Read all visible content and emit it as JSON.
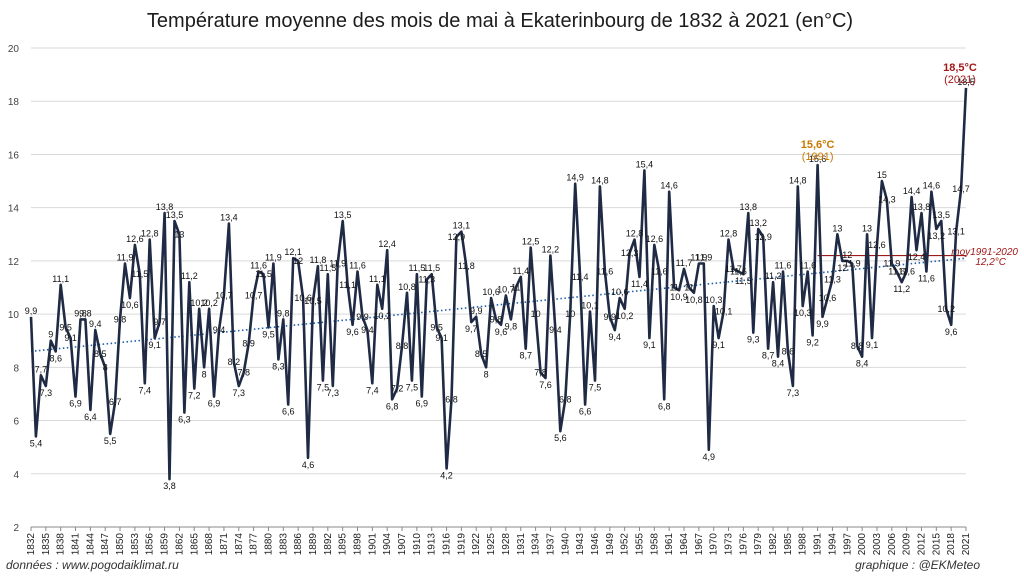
{
  "title": "Température moyenne des mois de mai à Ekaterinbourg de 1832 à 2021 (en°C)",
  "footer": {
    "source": "données : www.pogodaiklimat.ru",
    "credit": "graphique : @EKMeteo"
  },
  "colors": {
    "series": "#1f2a44",
    "trend": "#1f5fa8",
    "reference": "#a01818",
    "record_2021": "#a01818",
    "record_1991": "#c87800"
  },
  "chart_data": {
    "type": "line",
    "title": "Température moyenne des mois de mai à Ekaterinbourg de 1832 à 2021 (en°C)",
    "xlabel": "",
    "ylabel": "",
    "ylim": [
      2,
      20
    ],
    "yticks": [
      2,
      4,
      6,
      8,
      10,
      12,
      14,
      16,
      18,
      20
    ],
    "xlim": [
      1832,
      2021
    ],
    "xtick_start": 1832,
    "xtick_step": 3,
    "grid": "horizontal",
    "series": [
      {
        "name": "",
        "x_start": 1832,
        "values": [
          9.9,
          5.4,
          7.7,
          7.3,
          9.0,
          8.6,
          11.1,
          9.5,
          9.1,
          6.9,
          9.8,
          9.8,
          6.4,
          9.4,
          8.5,
          8.0,
          5.5,
          6.7,
          9.8,
          11.9,
          10.6,
          12.6,
          11.5,
          7.4,
          12.8,
          9.1,
          9.7,
          13.8,
          3.8,
          13.5,
          13.0,
          6.3,
          11.2,
          7.2,
          10.2,
          8.0,
          10.2,
          6.9,
          9.4,
          10.7,
          13.4,
          8.2,
          7.3,
          7.8,
          8.9,
          10.7,
          11.6,
          11.5,
          9.5,
          11.9,
          8.3,
          9.8,
          6.6,
          12.1,
          12.0,
          10.6,
          4.6,
          10.5,
          11.8,
          7.5,
          11.5,
          7.3,
          11.9,
          13.5,
          11.1,
          9.6,
          11.6,
          9.9,
          9.4,
          7.4,
          11.1,
          10.2,
          12.4,
          6.8,
          7.2,
          8.8,
          10.8,
          7.5,
          11.5,
          6.9,
          11.3,
          11.5,
          9.5,
          9.1,
          4.2,
          6.8,
          12.9,
          13.1,
          11.8,
          9.7,
          9.9,
          8.5,
          8.0,
          10.6,
          9.8,
          9.6,
          10.7,
          9.8,
          11.0,
          11.4,
          8.7,
          12.5,
          10.0,
          7.8,
          7.6,
          12.2,
          9.4,
          5.6,
          6.8,
          10.0,
          14.9,
          11.4,
          6.6,
          10.1,
          7.5,
          14.8,
          11.6,
          9.9,
          9.4,
          10.6,
          10.2,
          12.3,
          12.8,
          11.4,
          15.4,
          9.1,
          12.6,
          11.6,
          6.8,
          14.6,
          11.0,
          10.9,
          11.7,
          11.0,
          10.8,
          11.9,
          11.9,
          4.9,
          10.3,
          9.1,
          10.1,
          12.8,
          11.7,
          11.6,
          11.5,
          13.8,
          9.3,
          13.2,
          12.9,
          8.7,
          11.2,
          8.4,
          11.6,
          8.6,
          7.3,
          14.8,
          10.3,
          11.6,
          9.2,
          15.6,
          9.9,
          10.6,
          11.3,
          13.0,
          12.0,
          12.0,
          11.9,
          8.8,
          8.4,
          13.0,
          9.1,
          12.6,
          15.0,
          14.3,
          11.9,
          11.6,
          11.2,
          11.6,
          14.4,
          12.4,
          13.8,
          11.6,
          14.6,
          13.2,
          13.5,
          10.2,
          9.6,
          13.1,
          14.7,
          18.5
        ]
      }
    ],
    "labels_with_decimal_comma": true,
    "trend": {
      "name": "",
      "start": 8.6,
      "end": 12.1
    },
    "reference_line": {
      "label": "moy1991-2020",
      "value_label": "12,2°C",
      "value": 12.2,
      "from_year": 1991,
      "to_year": 2020
    },
    "annotations": [
      {
        "year": 2021,
        "value_label": "18,5°C",
        "year_label": "(2021)"
      },
      {
        "year": 1991,
        "value_label": "15,6°C",
        "year_label": "(1991)"
      }
    ]
  }
}
